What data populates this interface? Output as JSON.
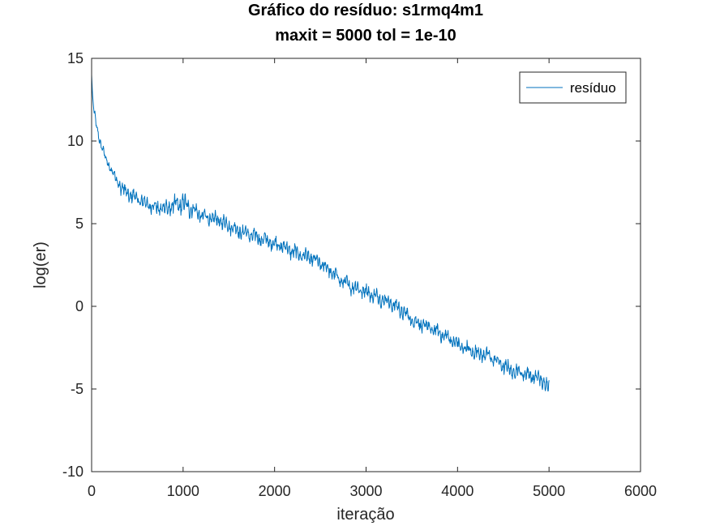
{
  "chart_data": {
    "type": "line",
    "title": "Gráfico do resíduo:  s1rmq4m1",
    "subtitle": "maxit = 5000 tol = 1e-10",
    "xlabel": "iteração",
    "ylabel": "log(er)",
    "xlim": [
      0,
      6000
    ],
    "ylim": [
      -10,
      15
    ],
    "xticks": [
      0,
      1000,
      2000,
      3000,
      4000,
      5000,
      6000
    ],
    "yticks": [
      -10,
      -5,
      0,
      5,
      10,
      15
    ],
    "grid": false,
    "legend_position": "top-right",
    "series": [
      {
        "name": "resíduo",
        "color": "#0072bd",
        "trend": [
          [
            0,
            14.0
          ],
          [
            10,
            12.8
          ],
          [
            25,
            11.8
          ],
          [
            50,
            11.0
          ],
          [
            75,
            10.4
          ],
          [
            100,
            9.8
          ],
          [
            150,
            9.0
          ],
          [
            200,
            8.4
          ],
          [
            250,
            7.9
          ],
          [
            300,
            7.4
          ],
          [
            350,
            7.0
          ],
          [
            400,
            6.8
          ],
          [
            500,
            6.5
          ],
          [
            600,
            6.2
          ],
          [
            700,
            6.0
          ],
          [
            800,
            5.9
          ],
          [
            900,
            6.1
          ],
          [
            1000,
            6.2
          ],
          [
            1100,
            5.9
          ],
          [
            1200,
            5.5
          ],
          [
            1300,
            5.3
          ],
          [
            1400,
            5.2
          ],
          [
            1500,
            4.9
          ],
          [
            1600,
            4.6
          ],
          [
            1700,
            4.4
          ],
          [
            1800,
            4.2
          ],
          [
            1900,
            4.0
          ],
          [
            2000,
            3.8
          ],
          [
            2100,
            3.6
          ],
          [
            2200,
            3.3
          ],
          [
            2300,
            3.1
          ],
          [
            2400,
            2.9
          ],
          [
            2500,
            2.6
          ],
          [
            2600,
            2.2
          ],
          [
            2700,
            1.7
          ],
          [
            2800,
            1.3
          ],
          [
            2900,
            1.1
          ],
          [
            3000,
            0.9
          ],
          [
            3100,
            0.6
          ],
          [
            3200,
            0.4
          ],
          [
            3300,
            0.1
          ],
          [
            3400,
            -0.3
          ],
          [
            3500,
            -0.8
          ],
          [
            3600,
            -1.1
          ],
          [
            3700,
            -1.3
          ],
          [
            3800,
            -1.6
          ],
          [
            3900,
            -1.9
          ],
          [
            4000,
            -2.3
          ],
          [
            4100,
            -2.6
          ],
          [
            4200,
            -2.8
          ],
          [
            4300,
            -2.9
          ],
          [
            4400,
            -3.2
          ],
          [
            4500,
            -3.6
          ],
          [
            4600,
            -3.9
          ],
          [
            4700,
            -4.0
          ],
          [
            4800,
            -4.2
          ],
          [
            4900,
            -4.4
          ],
          [
            4950,
            -4.6
          ],
          [
            5000,
            -4.9
          ]
        ],
        "oscillation_amplitude": 0.45
      }
    ]
  }
}
